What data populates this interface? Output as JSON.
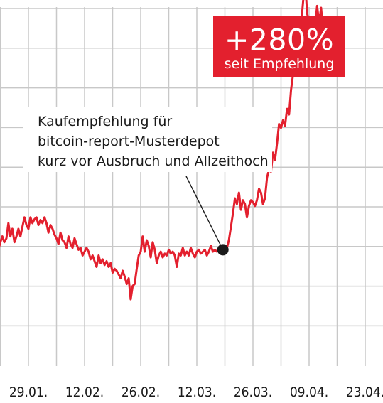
{
  "badge": {
    "headline": "+280%",
    "subline": "seit Empfehlung",
    "color": "#e3202e"
  },
  "annotation": {
    "lines": [
      "Kaufempfehlung für",
      "bitcoin-report-Musterdepot",
      "kurz vor Ausbruch und Allzeithoch"
    ]
  },
  "chart_data": {
    "type": "line",
    "title": "",
    "xlabel": "",
    "ylabel": "",
    "grid": true,
    "line_color": "#e3202e",
    "x_tick_labels": [
      "29.01.",
      "12.02.",
      "26.02.",
      "12.03.",
      "26.03.",
      "09.04.",
      "23.04."
    ],
    "x_range_days": [
      0,
      106
    ],
    "y_range_relative": [
      0,
      11
    ],
    "recommendation_point": {
      "day": 64.5,
      "value": 1.0
    },
    "series": [
      {
        "name": "",
        "points": [
          [
            0.0,
            4.1
          ],
          [
            0.5,
            4.35
          ],
          [
            1.0,
            3.95
          ],
          [
            1.5,
            3.8
          ],
          [
            2.0,
            3.3
          ],
          [
            2.5,
            3.1
          ],
          [
            3.0,
            2.6
          ],
          [
            3.5,
            2.95
          ],
          [
            4.0,
            2.2
          ],
          [
            4.5,
            2.35
          ],
          [
            5.0,
            1.3
          ],
          [
            5.5,
            1.1
          ],
          [
            6.0,
            1.35
          ],
          [
            6.5,
            1.5
          ],
          [
            7.0,
            1.75
          ],
          [
            7.5,
            1.25
          ],
          [
            8.0,
            0.55
          ],
          [
            8.5,
            1.0
          ],
          [
            9.0,
            1.2
          ],
          [
            9.5,
            1.35
          ],
          [
            10.0,
            1.2
          ],
          [
            10.5,
            1.3
          ],
          [
            11.0,
            1.7
          ],
          [
            11.5,
            1.35
          ],
          [
            12.0,
            1.55
          ],
          [
            12.5,
            1.2
          ],
          [
            13.0,
            1.35
          ],
          [
            13.5,
            1.55
          ],
          [
            14.0,
            1.35
          ],
          [
            14.5,
            1.6
          ],
          [
            15.0,
            1.85
          ],
          [
            15.5,
            1.65
          ],
          [
            16.0,
            1.55
          ],
          [
            16.5,
            1.85
          ],
          [
            17.0,
            1.7
          ],
          [
            17.5,
            1.8
          ],
          [
            18.0,
            1.85
          ],
          [
            18.5,
            1.65
          ],
          [
            19.0,
            1.78
          ],
          [
            19.5,
            1.7
          ],
          [
            20.0,
            1.85
          ],
          [
            20.5,
            1.7
          ],
          [
            21.0,
            1.45
          ],
          [
            21.5,
            1.65
          ],
          [
            22.0,
            1.55
          ],
          [
            22.5,
            1.4
          ],
          [
            23.0,
            1.3
          ],
          [
            23.5,
            1.15
          ],
          [
            24.0,
            1.45
          ],
          [
            24.5,
            1.25
          ],
          [
            25.0,
            1.2
          ],
          [
            25.5,
            1.05
          ],
          [
            26.0,
            1.35
          ],
          [
            26.5,
            1.15
          ],
          [
            27.0,
            1.05
          ],
          [
            27.5,
            1.3
          ],
          [
            28.0,
            1.15
          ],
          [
            28.5,
            1.0
          ],
          [
            29.0,
            1.05
          ],
          [
            29.5,
            0.85
          ],
          [
            30.0,
            0.95
          ],
          [
            30.5,
            1.05
          ],
          [
            31.0,
            0.95
          ],
          [
            31.5,
            0.75
          ],
          [
            32.0,
            0.85
          ],
          [
            32.5,
            0.7
          ],
          [
            33.0,
            0.55
          ],
          [
            33.5,
            0.85
          ],
          [
            34.0,
            0.65
          ],
          [
            34.5,
            0.75
          ],
          [
            35.0,
            0.6
          ],
          [
            35.5,
            0.7
          ],
          [
            36.0,
            0.55
          ],
          [
            36.5,
            0.65
          ],
          [
            37.0,
            0.4
          ],
          [
            37.5,
            0.5
          ],
          [
            38.0,
            0.45
          ],
          [
            38.5,
            0.35
          ],
          [
            39.0,
            0.25
          ],
          [
            39.5,
            0.45
          ],
          [
            40.0,
            0.3
          ],
          [
            40.5,
            0.1
          ],
          [
            41.0,
            0.25
          ],
          [
            41.5,
            -0.3
          ],
          [
            42.0,
            0.05
          ],
          [
            42.5,
            0.1
          ],
          [
            43.0,
            0.5
          ],
          [
            43.5,
            0.85
          ],
          [
            44.0,
            0.95
          ],
          [
            44.5,
            1.35
          ],
          [
            45.0,
            0.95
          ],
          [
            45.5,
            1.25
          ],
          [
            46.0,
            1.1
          ],
          [
            46.5,
            0.8
          ],
          [
            47.0,
            1.2
          ],
          [
            47.5,
            1.0
          ],
          [
            48.0,
            0.65
          ],
          [
            48.5,
            0.85
          ],
          [
            49.0,
            0.95
          ],
          [
            49.5,
            0.8
          ],
          [
            50.0,
            0.9
          ],
          [
            50.5,
            0.85
          ],
          [
            51.0,
            1.0
          ],
          [
            51.5,
            0.9
          ],
          [
            52.0,
            0.95
          ],
          [
            52.5,
            0.85
          ],
          [
            53.0,
            0.55
          ],
          [
            53.5,
            0.9
          ],
          [
            54.0,
            0.85
          ],
          [
            54.5,
            1.05
          ],
          [
            55.0,
            0.85
          ],
          [
            55.5,
            0.95
          ],
          [
            56.0,
            0.85
          ],
          [
            56.5,
            1.05
          ],
          [
            57.0,
            0.9
          ],
          [
            57.5,
            0.8
          ],
          [
            58.0,
            0.95
          ],
          [
            58.5,
            1.0
          ],
          [
            59.0,
            0.9
          ],
          [
            59.5,
            0.95
          ],
          [
            60.0,
            1.0
          ],
          [
            60.5,
            0.85
          ],
          [
            61.0,
            0.95
          ],
          [
            61.5,
            1.1
          ],
          [
            62.0,
            0.95
          ],
          [
            62.5,
            1.0
          ],
          [
            63.0,
            0.95
          ],
          [
            63.5,
            1.0
          ],
          [
            64.0,
            0.95
          ],
          [
            64.5,
            1.0
          ],
          [
            65.0,
            1.0
          ],
          [
            65.5,
            1.05
          ],
          [
            66.0,
            1.25
          ],
          [
            66.5,
            1.6
          ],
          [
            67.0,
            1.95
          ],
          [
            67.5,
            2.35
          ],
          [
            68.0,
            2.2
          ],
          [
            68.5,
            2.5
          ],
          [
            69.0,
            2.05
          ],
          [
            69.5,
            2.3
          ],
          [
            70.0,
            2.2
          ],
          [
            70.5,
            1.85
          ],
          [
            71.0,
            2.15
          ],
          [
            71.5,
            2.3
          ],
          [
            72.0,
            2.25
          ],
          [
            72.5,
            2.15
          ],
          [
            73.0,
            2.3
          ],
          [
            73.5,
            2.6
          ],
          [
            74.0,
            2.5
          ],
          [
            74.5,
            2.2
          ],
          [
            75.0,
            2.35
          ],
          [
            75.5,
            2.9
          ],
          [
            76.0,
            3.1
          ],
          [
            76.5,
            3.05
          ],
          [
            77.0,
            3.55
          ],
          [
            77.5,
            3.35
          ],
          [
            78.0,
            3.8
          ],
          [
            78.5,
            4.3
          ],
          [
            79.0,
            4.2
          ],
          [
            79.5,
            4.4
          ],
          [
            80.0,
            4.25
          ],
          [
            80.5,
            4.7
          ],
          [
            81.0,
            4.55
          ],
          [
            81.5,
            5.2
          ],
          [
            82.0,
            5.6
          ],
          [
            82.5,
            5.9
          ],
          [
            83.0,
            6.5
          ],
          [
            83.5,
            6.2
          ],
          [
            84.0,
            6.9
          ],
          [
            84.5,
            7.5
          ],
          [
            85.0,
            8.1
          ],
          [
            85.5,
            7.2
          ],
          [
            86.0,
            7.0
          ],
          [
            86.5,
            6.3
          ],
          [
            87.0,
            6.6
          ],
          [
            87.5,
            6.9
          ],
          [
            88.0,
            7.4
          ],
          [
            88.5,
            6.95
          ],
          [
            89.0,
            7.35
          ],
          [
            89.5,
            6.7
          ],
          [
            90.0,
            6.9
          ]
        ]
      }
    ]
  }
}
